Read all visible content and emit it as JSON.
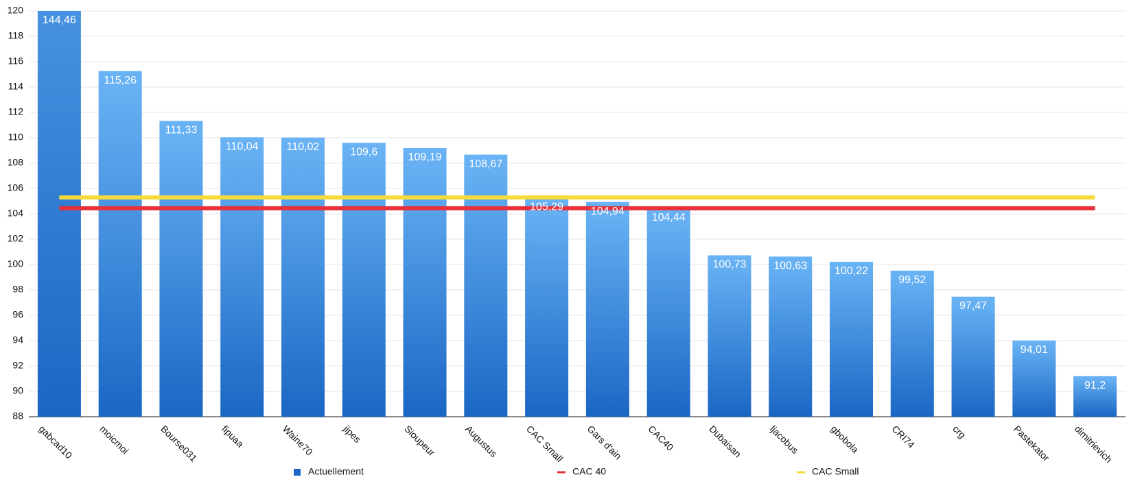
{
  "chart_data": {
    "type": "bar",
    "categories": [
      "gabcad10",
      "moicmoi",
      "Bourse031",
      "fipuaa",
      "Waine70",
      "jipes",
      "Sioupeur",
      "Augustus",
      "CAC Small",
      "Gars d'ain",
      "CAC40",
      "Dubaisan",
      "ljacobus",
      "gbobola",
      "CRI74",
      "crg",
      "Pastekator",
      "dimitrievich"
    ],
    "series": [
      {
        "name": "Actuellement",
        "type": "bar",
        "color": "#1a66c4",
        "values": [
          144.46,
          115.26,
          111.33,
          110.04,
          110.02,
          109.6,
          109.19,
          108.67,
          105.29,
          104.94,
          104.44,
          100.73,
          100.63,
          100.22,
          99.52,
          97.47,
          94.01,
          91.2
        ],
        "value_labels": [
          "144,46",
          "115,26",
          "111,33",
          "110,04",
          "110,02",
          "109,6",
          "109,19",
          "108,67",
          "105,29",
          "104,94",
          "104,44",
          "100,73",
          "100,63",
          "100,22",
          "99,52",
          "97,47",
          "94,01",
          "91,2"
        ]
      },
      {
        "name": "CAC 40",
        "type": "line",
        "color": "#e8303a",
        "values": [
          104.44,
          104.44,
          104.44,
          104.44,
          104.44,
          104.44,
          104.44,
          104.44,
          104.44,
          104.44,
          104.44,
          104.44,
          104.44,
          104.44,
          104.44,
          104.44,
          104.44,
          104.44
        ]
      },
      {
        "name": "CAC Small",
        "type": "line",
        "color": "#f5dc3c",
        "values": [
          105.29,
          105.29,
          105.29,
          105.29,
          105.29,
          105.29,
          105.29,
          105.29,
          105.29,
          105.29,
          105.29,
          105.29,
          105.29,
          105.29,
          105.29,
          105.29,
          105.29,
          105.29
        ]
      }
    ],
    "ylim": [
      88,
      120
    ],
    "yticks": [
      88,
      90,
      92,
      94,
      96,
      98,
      100,
      102,
      104,
      106,
      108,
      110,
      112,
      114,
      116,
      118,
      120
    ],
    "grid": true,
    "legend": "bottom"
  }
}
